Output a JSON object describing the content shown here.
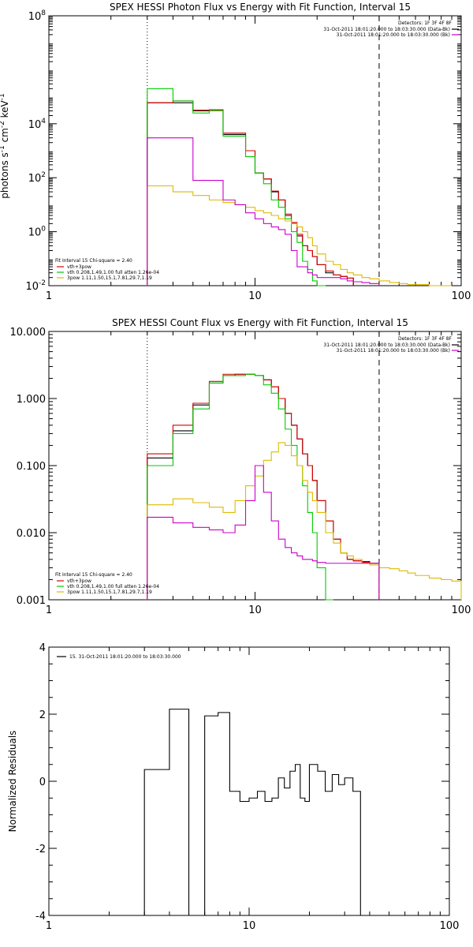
{
  "chart_data": [
    {
      "type": "line",
      "title": "SPEX HESSI Photon Flux vs Energy with Fit Function, Interval 15",
      "xlabel": "",
      "ylabel": "photons s^-1 cm^-2 keV^-1",
      "xscale": "log",
      "yscale": "log",
      "xlim": [
        1,
        100
      ],
      "ylim": [
        0.01,
        100000000
      ],
      "x_ticks": [
        {
          "v": 1,
          "t": "1"
        },
        {
          "v": 10,
          "t": "10"
        },
        {
          "v": 100,
          "t": "100"
        }
      ],
      "y_ticks": [
        {
          "v": 0.01,
          "base": "10",
          "exp": "-2"
        },
        {
          "v": 1,
          "base": "10",
          "exp": "0"
        },
        {
          "v": 100,
          "base": "10",
          "exp": "2"
        },
        {
          "v": 10000,
          "base": "10",
          "exp": "4"
        },
        {
          "v": 100000000,
          "base": "10",
          "exp": "8"
        }
      ],
      "vlines": [
        {
          "x": 3,
          "style": "dotted"
        },
        {
          "x": 40,
          "style": "dashed"
        }
      ],
      "legend_top_right": {
        "header": "Detectors: 1F 3F 4F 8F",
        "entries": [
          {
            "text": "31-Oct-2011 18:01:20.000 to 18:03:30.000 (Data-Bk)",
            "color": "#000000"
          },
          {
            "text": "31-Oct-2011 18:01:20.000 to 18:03:30.000 (Bk)",
            "color": "#cc00cc"
          }
        ]
      },
      "legend_bottom_left": {
        "header": "Fit Interval 15   Chi-square = 2.40",
        "entries": [
          {
            "text": "vth+3pow",
            "color": "#dd0000"
          },
          {
            "text": "vth 0.208,1.49,1.00  full atten 1.26e-04",
            "color": "#00cc00"
          },
          {
            "text": "3pow 1.11,1.50,15.1,7.81,29.7,1.19",
            "color": "#ddbb00"
          }
        ]
      },
      "bin_edges": [
        3,
        4,
        5,
        6,
        7,
        8,
        9,
        10,
        11,
        12,
        13,
        14,
        15,
        16,
        17,
        18,
        19,
        20,
        22,
        24,
        26,
        28,
        30,
        33,
        36,
        40,
        45,
        50,
        55,
        60,
        70,
        80,
        90,
        100
      ],
      "series": [
        {
          "name": "(Data-Bk)",
          "color": "#000000",
          "x_start": 3,
          "values": [
            60000,
            60000,
            30000,
            30000,
            4000,
            4000,
            1000,
            150,
            90,
            30,
            15,
            4,
            2,
            0.7,
            0.3,
            0.2,
            0.12,
            0.06,
            0.03,
            0.025,
            0.022,
            0.019
          ]
        },
        {
          "name": "vth+3pow",
          "color": "#dd0000",
          "x_start": 3,
          "values": [
            60000,
            70000,
            32000,
            33000,
            4500,
            4500,
            1000,
            150,
            90,
            32,
            15,
            4.5,
            2.2,
            0.8,
            0.3,
            0.2,
            0.12,
            0.06,
            0.035,
            0.025,
            0.022,
            0.019
          ]
        },
        {
          "name": "vth",
          "color": "#00cc00",
          "x_start": 3,
          "values": [
            200000,
            70000,
            25000,
            30000,
            3500,
            3500,
            600,
            150,
            60,
            15,
            8,
            3,
            1,
            0.4,
            0.08,
            0.04,
            0.015,
            0.01
          ]
        },
        {
          "name": "3pow",
          "color": "#ddbb00",
          "x_start": 3,
          "values": [
            50,
            30,
            22,
            15,
            12,
            10,
            8,
            6,
            5,
            4,
            3,
            2.5,
            2,
            1.5,
            1,
            0.6,
            0.3,
            0.15,
            0.08,
            0.06,
            0.04,
            0.03,
            0.025,
            0.02,
            0.018,
            0.015,
            0.013,
            0.012,
            0.011,
            0.011,
            0.01,
            0.01
          ]
        },
        {
          "name": "Bk",
          "color": "#cc00cc",
          "x_start": 3,
          "values": [
            3000,
            3000,
            80,
            80,
            15,
            10,
            5,
            3,
            2,
            1.5,
            1.2,
            0.8,
            0.2,
            0.05,
            0.05,
            0.03,
            0.025,
            0.02,
            0.02,
            0.02,
            0.018,
            0.015,
            0.014,
            0.013,
            0.012
          ]
        }
      ]
    },
    {
      "type": "line",
      "title": "SPEX HESSI Count Flux vs Energy with Fit Function, Interval 15",
      "xlabel": "",
      "ylabel": "",
      "xscale": "log",
      "yscale": "log",
      "xlim": [
        1,
        100
      ],
      "ylim": [
        0.001,
        10
      ],
      "x_ticks": [
        {
          "v": 1,
          "t": "1"
        },
        {
          "v": 10,
          "t": "10"
        },
        {
          "v": 100,
          "t": "100"
        }
      ],
      "y_ticks": [
        {
          "v": 0.001,
          "t": "0.001"
        },
        {
          "v": 0.01,
          "t": "0.010"
        },
        {
          "v": 0.1,
          "t": "0.100"
        },
        {
          "v": 1,
          "t": "1.000"
        },
        {
          "v": 10,
          "t": "10.000"
        }
      ],
      "vlines": [
        {
          "x": 3,
          "style": "dotted"
        },
        {
          "x": 40,
          "style": "dashed"
        }
      ],
      "legend_top_right": {
        "header": "Detectors: 1F 3F 4F 8F",
        "entries": [
          {
            "text": "31-Oct-2011 18:01:20.000 to 18:03:30.000 (Data-Bk)",
            "color": "#000000"
          },
          {
            "text": "31-Oct-2011 18:01:20.000 to 18:03:30.000 (Bk)",
            "color": "#cc00cc"
          }
        ]
      },
      "legend_bottom_left": {
        "header": "Fit Interval 15   Chi-square = 2.40",
        "entries": [
          {
            "text": "vth+3pow",
            "color": "#dd0000"
          },
          {
            "text": "vth 0.208,1.49,1.00  full atten 1.26e-04",
            "color": "#00cc00"
          },
          {
            "text": "3pow 1.11,1.50,15.1,7.81,29.7,1.19",
            "color": "#ddbb00"
          }
        ]
      },
      "bin_edges": [
        3,
        4,
        5,
        6,
        7,
        8,
        9,
        10,
        11,
        12,
        13,
        14,
        15,
        16,
        17,
        18,
        19,
        20,
        22,
        24,
        26,
        28,
        30,
        33,
        36,
        40,
        45,
        50,
        55,
        60,
        70,
        80,
        90,
        100
      ],
      "series": [
        {
          "name": "(Data-Bk)",
          "color": "#000000",
          "x_start": 3,
          "values": [
            0.13,
            0.33,
            0.8,
            1.7,
            2.2,
            2.3,
            2.3,
            2.2,
            1.9,
            1.5,
            1.0,
            0.6,
            0.4,
            0.25,
            0.15,
            0.1,
            0.06,
            0.03,
            0.015,
            0.008,
            0.005,
            0.004,
            0.0038,
            0.0037,
            0.0035
          ]
        },
        {
          "name": "vth+3pow",
          "color": "#dd0000",
          "x_start": 3,
          "values": [
            0.15,
            0.4,
            0.85,
            1.8,
            2.3,
            2.3,
            2.3,
            2.2,
            1.9,
            1.5,
            1.0,
            0.6,
            0.4,
            0.25,
            0.15,
            0.1,
            0.06,
            0.03,
            0.015,
            0.008,
            0.005,
            0.004,
            0.0038,
            0.0036,
            0.0035
          ]
        },
        {
          "name": "vth",
          "color": "#00cc00",
          "x_start": 3,
          "values": [
            0.1,
            0.3,
            0.7,
            1.7,
            2.2,
            2.2,
            2.3,
            2.2,
            1.6,
            1.2,
            0.7,
            0.35,
            0.2,
            0.1,
            0.05,
            0.02,
            0.01,
            0.003,
            0.001
          ]
        },
        {
          "name": "3pow",
          "color": "#ddbb00",
          "x_start": 3,
          "values": [
            0.026,
            0.032,
            0.028,
            0.024,
            0.02,
            0.03,
            0.05,
            0.07,
            0.12,
            0.16,
            0.22,
            0.2,
            0.14,
            0.1,
            0.06,
            0.04,
            0.03,
            0.02,
            0.01,
            0.007,
            0.005,
            0.0045,
            0.004,
            0.0035,
            0.0033,
            0.003,
            0.0029,
            0.0027,
            0.0025,
            0.0023,
            0.0021,
            0.002,
            0.0019
          ]
        },
        {
          "name": "Bk",
          "color": "#cc00cc",
          "x_start": 3,
          "values": [
            0.017,
            0.014,
            0.012,
            0.011,
            0.01,
            0.013,
            0.03,
            0.1,
            0.04,
            0.015,
            0.008,
            0.006,
            0.005,
            0.0045,
            0.004,
            0.004,
            0.0038,
            0.0036,
            0.0035,
            0.0035,
            0.0035,
            0.0035,
            0.0035,
            0.0035,
            0.0035
          ]
        }
      ]
    },
    {
      "type": "line",
      "title": "",
      "xlabel": "",
      "ylabel": "Normalized Residuals",
      "xscale": "log",
      "yscale": "linear",
      "xlim": [
        1,
        100
      ],
      "ylim": [
        -4,
        4
      ],
      "x_ticks": [
        {
          "v": 1,
          "t": "1"
        },
        {
          "v": 10,
          "t": "10"
        },
        {
          "v": 100,
          "t": "100"
        }
      ],
      "y_ticks": [
        {
          "v": 4,
          "t": "4"
        },
        {
          "v": 2,
          "t": "2"
        },
        {
          "v": 0,
          "t": "0"
        },
        {
          "v": -2,
          "t": "-2"
        },
        {
          "v": -4,
          "t": "-4"
        }
      ],
      "legend_top_left": {
        "entries": [
          {
            "text": "15. 31-Oct-2011 18:01:20.000 to 18:03:30.000",
            "color": "#000000"
          }
        ]
      },
      "bin_edges": [
        3,
        4,
        5,
        6,
        7,
        8,
        9,
        10,
        11,
        12,
        13,
        14,
        15,
        16,
        17,
        18,
        19,
        20,
        22,
        24,
        26,
        28,
        30,
        33,
        36,
        40
      ],
      "series": [
        {
          "name": "residuals",
          "color": "#000000",
          "x_start": 3,
          "values": [
            0.35,
            2.15,
            -4,
            1.95,
            2.05,
            -0.3,
            -0.6,
            -0.5,
            -0.3,
            -0.6,
            -0.5,
            0.1,
            -0.2,
            0.3,
            0.5,
            -0.5,
            -0.6,
            0.5,
            0.3,
            -0.3,
            0.2,
            -0.1,
            0.1,
            -0.3,
            -4
          ]
        }
      ]
    }
  ]
}
